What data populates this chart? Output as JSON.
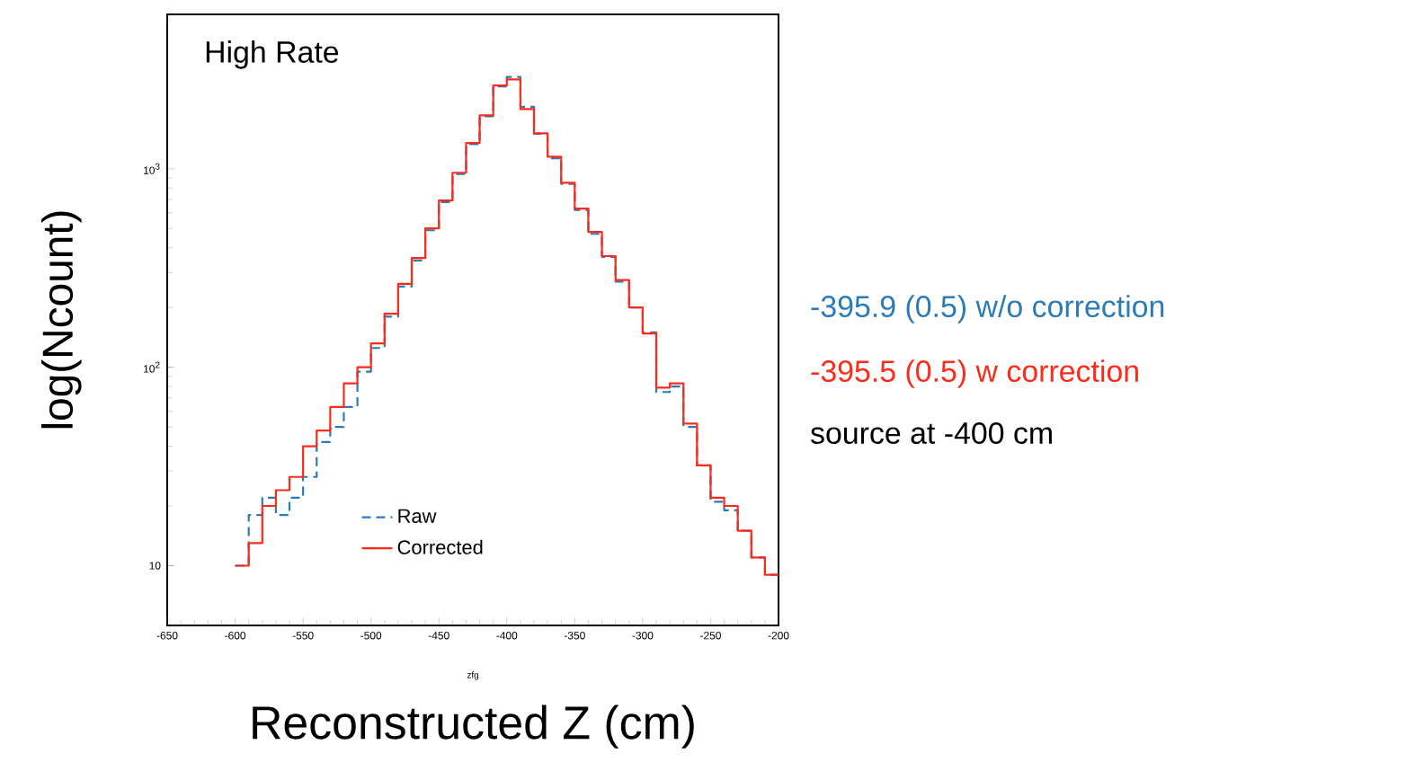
{
  "chart_data": {
    "type": "histogram",
    "title": "High Rate",
    "xlabel": "Reconstructed Z (cm)",
    "ylabel": "log(Ncount)",
    "annotations": [
      "-395.9 (0.5) w/o correction",
      "-395.5 (0.5) w correction",
      "source at -400 cm",
      "zfg"
    ],
    "bins": [
      -600,
      -590,
      -580,
      -570,
      -560,
      -550,
      -540,
      -530,
      -520,
      -510,
      -500,
      -490,
      -480,
      -470,
      -460,
      -450,
      -440,
      -430,
      -420,
      -410,
      -400,
      -390,
      -380,
      -370,
      -360,
      -350,
      -340,
      -330,
      -320,
      -310,
      -300,
      -290,
      -280,
      -270,
      -260,
      -250,
      -240,
      -230,
      -220,
      -210,
      -200
    ],
    "series": [
      {
        "name": "Raw",
        "color": "#2b7bb9",
        "line_style": "dashed",
        "values": [
          10,
          18,
          22,
          18,
          22,
          28,
          42,
          50,
          63,
          95,
          125,
          180,
          255,
          345,
          490,
          680,
          940,
          1330,
          1840,
          2600,
          2900,
          2050,
          1500,
          1130,
          840,
          620,
          470,
          360,
          270,
          200,
          150,
          75,
          80,
          50,
          32,
          21,
          19,
          15,
          11,
          9
        ]
      },
      {
        "name": "Corrected",
        "color": "#ff2a1a",
        "line_style": "solid",
        "values": [
          10,
          13,
          20,
          24,
          28,
          40,
          48,
          63,
          83,
          100,
          132,
          186,
          263,
          355,
          501,
          692,
          955,
          1350,
          1860,
          2630,
          2820,
          2000,
          1510,
          1150,
          850,
          630,
          480,
          363,
          275,
          200,
          148,
          79,
          83,
          52,
          32,
          22,
          20,
          15,
          11,
          9
        ]
      }
    ],
    "xlim": [
      -650,
      -200
    ],
    "ylim": [
      5,
      6000
    ],
    "log": "y",
    "xticks": [
      -650,
      -600,
      -550,
      -500,
      -450,
      -400,
      -350,
      -300,
      -250,
      -200
    ],
    "yticks": [
      10,
      {
        "value": 100,
        "label": "10$^{2}$"
      },
      {
        "value": 1000,
        "label": "10$^{3}$"
      }
    ],
    "legend": "bottom",
    "grid": false
  }
}
